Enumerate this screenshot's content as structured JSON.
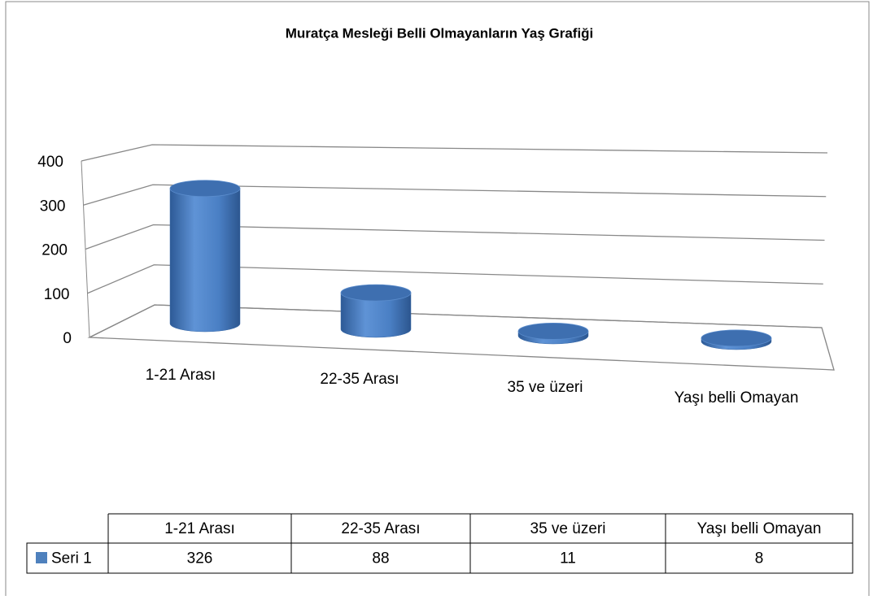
{
  "chart_data": {
    "type": "bar3d-cylinder",
    "title": "Muratça Mesleği Belli Olmayanların Yaş Grafiği",
    "categories": [
      "1-21 Arası",
      "22-35 Arası",
      "35 ve üzeri",
      "Yaşı belli Omayan"
    ],
    "series": [
      {
        "name": "Seri 1",
        "color": "#4f81bd",
        "values": [
          326,
          88,
          11,
          8
        ]
      }
    ],
    "ylim": [
      0,
      400
    ],
    "yticks": [
      0,
      100,
      200,
      300,
      400
    ],
    "grid": true,
    "data_table": true
  }
}
